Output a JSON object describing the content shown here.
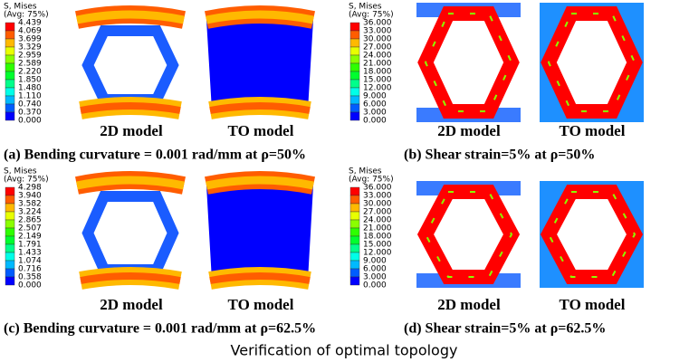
{
  "panels": [
    {
      "legend": {
        "title": "S, Mises",
        "subtitle": "(Avg: 75%)",
        "ticks": [
          "4.439",
          "4.069",
          "3.699",
          "3.329",
          "2.959",
          "2.589",
          "2.220",
          "1.850",
          "1.480",
          "1.110",
          "0.740",
          "0.370",
          "0.000"
        ]
      },
      "models": [
        "2D model",
        "TO model"
      ],
      "caption": "(a) Bending curvature = 0.001 rad/mm at ρ=50%"
    },
    {
      "legend": {
        "title": "S, Mises",
        "subtitle": "(Avg: 75%)",
        "ticks": [
          "36.000",
          "33.000",
          "30.000",
          "27.000",
          "24.000",
          "21.000",
          "18.000",
          "15.000",
          "12.000",
          "9.000",
          "6.000",
          "3.000",
          "0.000"
        ]
      },
      "models": [
        "2D model",
        "TO model"
      ],
      "caption": "(b) Shear strain=5% at ρ=50%"
    },
    {
      "legend": {
        "title": "S, Mises",
        "subtitle": "(Avg: 75%)",
        "ticks": [
          "4.298",
          "3.940",
          "3.582",
          "3.224",
          "2.865",
          "2.507",
          "2.149",
          "1.791",
          "1.433",
          "1.074",
          "0.716",
          "0.358",
          "0.000"
        ]
      },
      "models": [
        "2D model",
        "TO model"
      ],
      "caption": "(c) Bending curvature = 0.001 rad/mm at ρ=62.5%"
    },
    {
      "legend": {
        "title": "S, Mises",
        "subtitle": "(Avg: 75%)",
        "ticks": [
          "36.000",
          "33.000",
          "30.000",
          "27.000",
          "24.000",
          "21.000",
          "18.000",
          "15.000",
          "12.000",
          "9.000",
          "6.000",
          "3.000",
          "0.000"
        ]
      },
      "models": [
        "2D model",
        "TO model"
      ],
      "caption": "(d) Shear strain=5% at ρ=62.5%"
    }
  ],
  "caption": "Verification of optimal topology"
}
